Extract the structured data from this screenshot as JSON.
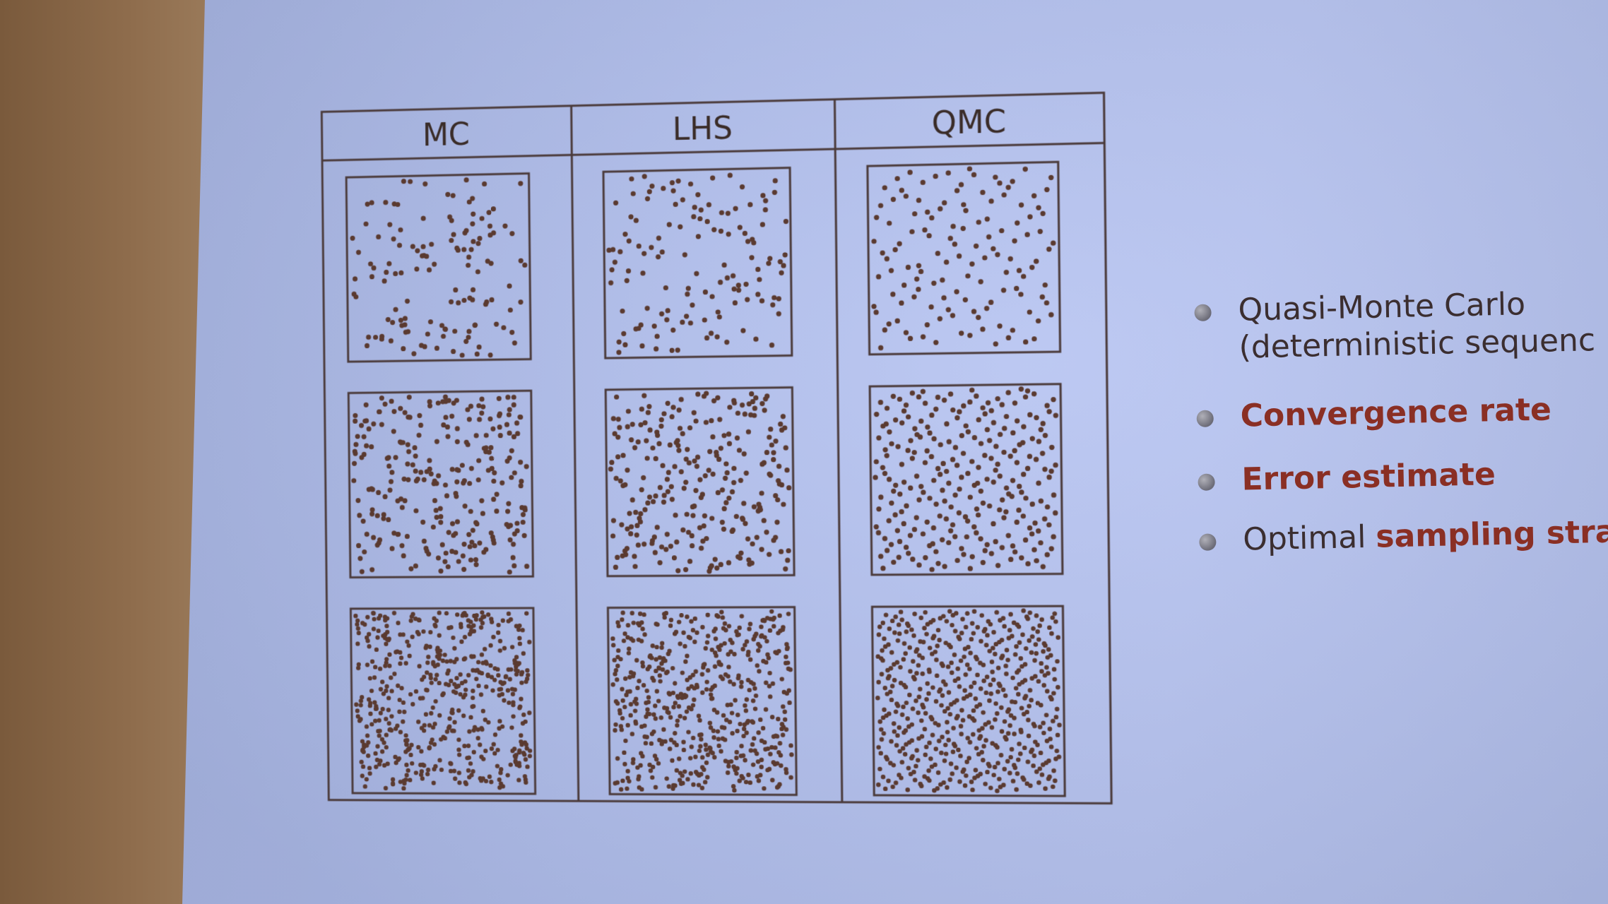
{
  "figure": {
    "columns": [
      "MC",
      "LHS",
      "QMC"
    ],
    "rows": 3,
    "colors": {
      "dot": "#5a3a30",
      "border": "#4a3a3a"
    }
  },
  "bullets": {
    "item1_line1": "Quasi-Monte Carlo",
    "item1_line2": "(deterministic sequenc",
    "item2": "Convergence rate",
    "item3": "Error estimate",
    "item4_plain": "Optimal ",
    "item4_accent": "sampling stra"
  },
  "colors": {
    "accent": "#8a2f24",
    "text": "#3b2e30",
    "screen": "#b2c0ef"
  }
}
